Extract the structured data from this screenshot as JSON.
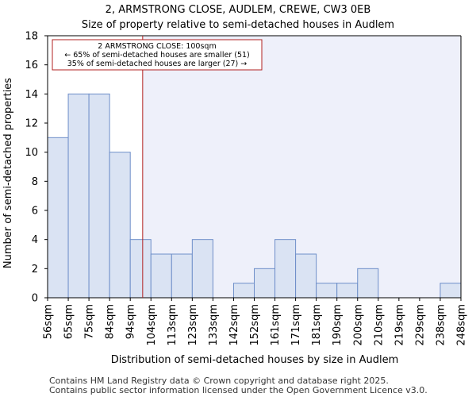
{
  "chart_data": {
    "type": "bar",
    "title_line1": "2, ARMSTRONG CLOSE, AUDLEM, CREWE, CW3 0EB",
    "title_line2": "Size of property relative to semi-detached houses in Audlem",
    "xlabel": "Distribution of semi-detached houses by size in Audlem",
    "ylabel": "Number of semi-detached properties",
    "x_tick_labels": [
      "56sqm",
      "65sqm",
      "75sqm",
      "84sqm",
      "94sqm",
      "104sqm",
      "113sqm",
      "123sqm",
      "133sqm",
      "142sqm",
      "152sqm",
      "161sqm",
      "171sqm",
      "181sqm",
      "190sqm",
      "200sqm",
      "210sqm",
      "219sqm",
      "229sqm",
      "238sqm",
      "248sqm"
    ],
    "values": [
      11,
      14,
      14,
      10,
      4,
      3,
      3,
      4,
      0,
      1,
      2,
      4,
      3,
      1,
      1,
      2,
      0,
      0,
      0,
      1
    ],
    "ylim": [
      0,
      18
    ],
    "yticks": [
      0,
      2,
      4,
      6,
      8,
      10,
      12,
      14,
      16,
      18
    ],
    "property_line_bin_position": 4.6,
    "bar_color": "#dae3f3",
    "bar_edge_color": "#6f8fc9",
    "highlight_color": "#b22222",
    "shade_color": "#eef0fa",
    "annotation": {
      "line1": "2 ARMSTRONG CLOSE: 100sqm",
      "line2": "← 65% of semi-detached houses are smaller (51)",
      "line3": "35% of semi-detached houses are larger (27) →"
    }
  },
  "footer": {
    "line1": "Contains HM Land Registry data © Crown copyright and database right 2025.",
    "line2": "Contains public sector information licensed under the Open Government Licence v3.0."
  }
}
